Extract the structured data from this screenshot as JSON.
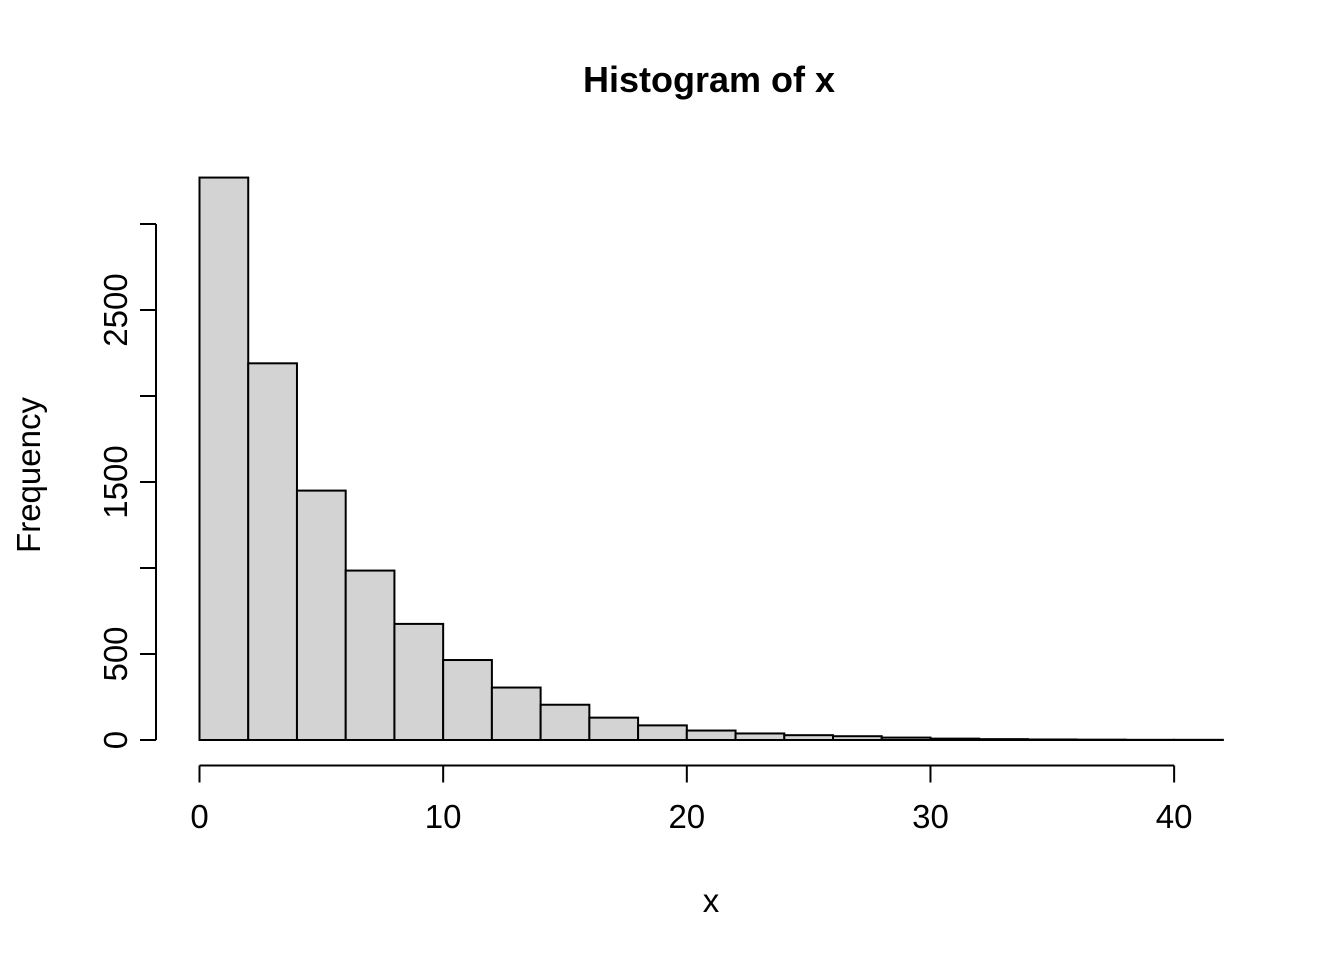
{
  "chart_data": {
    "type": "bar",
    "subtype": "histogram",
    "title": "Histogram of x",
    "xlabel": "x",
    "ylabel": "Frequency",
    "bin_width": 2,
    "bin_edges": [
      0,
      2,
      4,
      6,
      8,
      10,
      12,
      14,
      16,
      18,
      20,
      22,
      24,
      26,
      28,
      30,
      32,
      34,
      36,
      38,
      40,
      42
    ],
    "counts": [
      3270,
      2190,
      1450,
      985,
      675,
      465,
      305,
      205,
      130,
      85,
      55,
      38,
      28,
      22,
      14,
      8,
      5,
      3,
      2,
      1,
      1
    ],
    "x_ticks": [
      0,
      10,
      20,
      30,
      40
    ],
    "x_tick_labels": [
      "0",
      "10",
      "20",
      "30",
      "40"
    ],
    "y_ticks": [
      0,
      500,
      1000,
      1500,
      2000,
      2500,
      3000
    ],
    "y_tick_labels": [
      "0",
      "500",
      "",
      "1500",
      "",
      "2500",
      ""
    ],
    "xlim": [
      0,
      42
    ],
    "ylim": [
      0,
      3000
    ],
    "grid": "off",
    "legend": "none",
    "colors": {
      "bar_fill": "#d3d3d3",
      "bar_border": "#000000",
      "axis": "#000000",
      "background": "#ffffff",
      "text": "#000000"
    }
  }
}
